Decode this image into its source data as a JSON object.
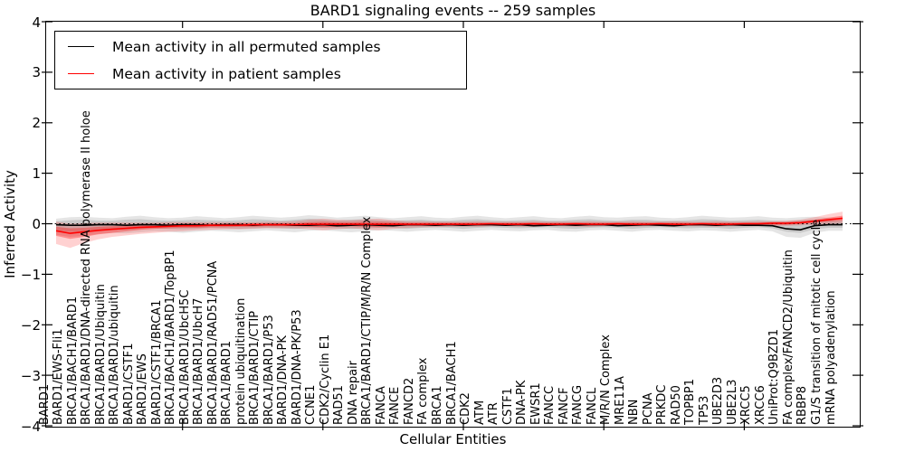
{
  "figure": {
    "background": "#ffffff"
  },
  "legend": {
    "items": [
      {
        "label": "Mean activity in all permuted samples",
        "color": "#000000"
      },
      {
        "label": "Mean activity in patient samples",
        "color": "#ff0000"
      }
    ]
  },
  "chart_data": {
    "type": "line",
    "title": "BARD1 signaling events -- 259 samples",
    "xlabel": "Cellular Entities",
    "ylabel": "Inferred Activity",
    "ylim": [
      -4,
      4
    ],
    "yticks": [
      4,
      3,
      2,
      1,
      0,
      -1,
      -2,
      -3,
      -4
    ],
    "ytick_labels": [
      "4",
      "3",
      "2",
      "1",
      "0",
      "−1",
      "−2",
      "−3",
      "−4"
    ],
    "grid": false,
    "legend_position": "upper left",
    "zero_line": {
      "y": 0,
      "style": "dotted",
      "color": "#000000"
    },
    "x_major_tick_indices": [
      9,
      19,
      29,
      39,
      49
    ],
    "categories": [
      "BARD1",
      "BARD1/EWS-Fli1",
      "BRCA1/BACH1/BARD1",
      "BRCA1/BARD1/DNA-directed RNA polymerase II holoe",
      "BRCA1/BARD1/Ubiquitin",
      "BRCA1/BARD1/ubiquitin",
      "BARD1/CSTF1",
      "BARD1/EWS",
      "BARD1/CSTF1/BRCA1",
      "BRCA1/BACH1/BARD1/TopBP1",
      "BRCA1/BARD1/UbcH5C",
      "BRCA1/BARD1/UbcH7",
      "BRCA1/BARD1/RAD51/PCNA",
      "BRCA1/BARD1",
      "protein ubiquitination",
      "BRCA1/BARD1/CTIP",
      "BRCA1/BARD1/P53",
      "BARD1/DNA-PK",
      "BARD1/DNA-PK/P53",
      "CCNE1",
      "CDK2/Cyclin E1",
      "RAD51",
      "DNA repair",
      "BRCA1/BARD1/CTIP/M/R/N Complex",
      "FANCA",
      "FANCE",
      "FANCD2",
      "FA complex",
      "BRCA1",
      "BRCA1/BACH1",
      "CDK2",
      "ATM",
      "ATR",
      "CSTF1",
      "DNA-PK",
      "EWSR1",
      "FANCC",
      "FANCF",
      "FANCG",
      "FANCL",
      "M/R/N Complex",
      "MRE11A",
      "NBN",
      "PCNA",
      "PRKDC",
      "RAD50",
      "TOPBP1",
      "TP53",
      "UBE2D3",
      "UBE2L3",
      "XRCC5",
      "XRCC6",
      "UniProt:Q9BZD1",
      "FA complex/FANCD2/Ubiquitin",
      "RBBP8",
      "G1/S transition of mitotic cell cycle",
      "mRNA polyadenylation"
    ],
    "series": [
      {
        "name": "Mean activity in all permuted samples",
        "color": "#000000",
        "line_width": 1.6,
        "values": [
          -0.02,
          -0.03,
          -0.03,
          -0.02,
          -0.02,
          -0.03,
          -0.02,
          -0.02,
          -0.03,
          -0.02,
          -0.02,
          -0.03,
          -0.02,
          -0.02,
          -0.03,
          -0.02,
          -0.02,
          -0.03,
          -0.03,
          -0.02,
          -0.04,
          -0.03,
          -0.02,
          -0.03,
          -0.04,
          -0.02,
          -0.02,
          -0.03,
          -0.02,
          -0.03,
          -0.02,
          -0.02,
          -0.03,
          -0.02,
          -0.04,
          -0.03,
          -0.02,
          -0.03,
          -0.02,
          -0.02,
          -0.04,
          -0.03,
          -0.02,
          -0.03,
          -0.04,
          -0.02,
          -0.02,
          -0.03,
          -0.02,
          -0.03,
          -0.03,
          -0.04,
          -0.1,
          -0.12,
          -0.04,
          -0.02,
          -0.02
        ],
        "bands": [
          {
            "opacity": 0.1,
            "color": "#000000",
            "upper": [
              0.1,
              0.13,
              0.14,
              0.12,
              0.11,
              0.14,
              0.16,
              0.13,
              0.11,
              0.12,
              0.15,
              0.13,
              0.11,
              0.13,
              0.16,
              0.14,
              0.12,
              0.14,
              0.17,
              0.15,
              0.12,
              0.14,
              0.16,
              0.13,
              0.11,
              0.13,
              0.15,
              0.12,
              0.11,
              0.14,
              0.16,
              0.13,
              0.11,
              0.13,
              0.15,
              0.12,
              0.11,
              0.14,
              0.16,
              0.13,
              0.12,
              0.14,
              0.15,
              0.12,
              0.11,
              0.13,
              0.16,
              0.14,
              0.12,
              0.13,
              0.15,
              0.12,
              0.11,
              0.13,
              0.14,
              0.12,
              0.1
            ],
            "lower": [
              -0.22,
              -0.26,
              -0.24,
              -0.2,
              -0.18,
              -0.19,
              -0.17,
              -0.15,
              -0.16,
              -0.18,
              -0.16,
              -0.14,
              -0.15,
              -0.17,
              -0.15,
              -0.13,
              -0.15,
              -0.17,
              -0.14,
              -0.13,
              -0.15,
              -0.17,
              -0.15,
              -0.13,
              -0.14,
              -0.16,
              -0.14,
              -0.12,
              -0.14,
              -0.16,
              -0.14,
              -0.12,
              -0.14,
              -0.15,
              -0.13,
              -0.12,
              -0.15,
              -0.16,
              -0.13,
              -0.12,
              -0.14,
              -0.16,
              -0.13,
              -0.12,
              -0.14,
              -0.15,
              -0.13,
              -0.14,
              -0.16,
              -0.14,
              -0.12,
              -0.15,
              -0.26,
              -0.28,
              -0.18,
              -0.14,
              -0.14
            ]
          },
          {
            "opacity": 0.12,
            "color": "#000000",
            "upper": [
              0.05,
              0.07,
              0.08,
              0.06,
              0.06,
              0.08,
              0.09,
              0.07,
              0.06,
              0.07,
              0.08,
              0.07,
              0.06,
              0.07,
              0.09,
              0.08,
              0.06,
              0.08,
              0.1,
              0.08,
              0.06,
              0.08,
              0.09,
              0.07,
              0.06,
              0.07,
              0.08,
              0.06,
              0.06,
              0.08,
              0.09,
              0.07,
              0.06,
              0.07,
              0.08,
              0.06,
              0.06,
              0.08,
              0.09,
              0.07,
              0.06,
              0.08,
              0.08,
              0.06,
              0.06,
              0.07,
              0.09,
              0.08,
              0.06,
              0.07,
              0.08,
              0.06,
              0.05,
              0.07,
              0.08,
              0.07,
              0.06
            ],
            "lower": [
              -0.13,
              -0.16,
              -0.15,
              -0.12,
              -0.11,
              -0.12,
              -0.1,
              -0.09,
              -0.1,
              -0.11,
              -0.1,
              -0.08,
              -0.09,
              -0.1,
              -0.09,
              -0.08,
              -0.09,
              -0.1,
              -0.08,
              -0.08,
              -0.09,
              -0.1,
              -0.09,
              -0.08,
              -0.08,
              -0.1,
              -0.08,
              -0.07,
              -0.08,
              -0.1,
              -0.08,
              -0.07,
              -0.08,
              -0.09,
              -0.08,
              -0.07,
              -0.09,
              -0.1,
              -0.08,
              -0.07,
              -0.08,
              -0.1,
              -0.08,
              -0.07,
              -0.08,
              -0.09,
              -0.08,
              -0.08,
              -0.1,
              -0.08,
              -0.07,
              -0.09,
              -0.16,
              -0.18,
              -0.11,
              -0.08,
              -0.08
            ]
          }
        ]
      },
      {
        "name": "Mean activity in patient samples",
        "color": "#ff0000",
        "line_width": 1.6,
        "values": [
          -0.14,
          -0.19,
          -0.16,
          -0.13,
          -0.11,
          -0.09,
          -0.07,
          -0.06,
          -0.05,
          -0.04,
          -0.04,
          -0.03,
          -0.03,
          -0.03,
          -0.02,
          -0.02,
          -0.02,
          -0.02,
          -0.01,
          -0.01,
          -0.01,
          -0.01,
          -0.01,
          -0.01,
          -0.01,
          -0.01,
          -0.01,
          -0.01,
          -0.01,
          -0.01,
          -0.01,
          0.0,
          -0.01,
          -0.01,
          0.0,
          -0.01,
          -0.01,
          0.0,
          -0.01,
          -0.01,
          0.0,
          -0.01,
          -0.01,
          0.0,
          -0.01,
          -0.01,
          0.0,
          -0.01,
          -0.01,
          0.0,
          0.0,
          0.01,
          0.01,
          0.02,
          0.05,
          0.08,
          0.11
        ],
        "bands": [
          {
            "opacity": 0.18,
            "color": "#ff0000",
            "upper": [
              0.04,
              0.0,
              0.01,
              0.02,
              0.02,
              0.02,
              0.02,
              0.02,
              0.03,
              0.03,
              0.03,
              0.03,
              0.03,
              0.03,
              0.03,
              0.04,
              0.04,
              0.05,
              0.08,
              0.1,
              0.08,
              0.07,
              0.09,
              0.1,
              0.07,
              0.05,
              0.05,
              0.04,
              0.04,
              0.04,
              0.05,
              0.04,
              0.04,
              0.04,
              0.05,
              0.04,
              0.04,
              0.04,
              0.05,
              0.04,
              0.04,
              0.05,
              0.04,
              0.04,
              0.05,
              0.04,
              0.04,
              0.05,
              0.04,
              0.04,
              0.05,
              0.05,
              0.06,
              0.08,
              0.13,
              0.19,
              0.24
            ],
            "lower": [
              -0.4,
              -0.48,
              -0.38,
              -0.31,
              -0.26,
              -0.23,
              -0.2,
              -0.18,
              -0.16,
              -0.15,
              -0.13,
              -0.12,
              -0.11,
              -0.11,
              -0.1,
              -0.09,
              -0.09,
              -0.09,
              -0.11,
              -0.13,
              -0.11,
              -0.09,
              -0.11,
              -0.13,
              -0.1,
              -0.08,
              -0.07,
              -0.07,
              -0.06,
              -0.06,
              -0.06,
              -0.05,
              -0.05,
              -0.06,
              -0.06,
              -0.05,
              -0.05,
              -0.06,
              -0.06,
              -0.05,
              -0.05,
              -0.06,
              -0.05,
              -0.05,
              -0.06,
              -0.05,
              -0.05,
              -0.06,
              -0.05,
              -0.05,
              -0.05,
              -0.04,
              -0.04,
              -0.03,
              -0.02,
              -0.01,
              0.01
            ]
          },
          {
            "opacity": 0.32,
            "color": "#ff0000",
            "upper": [
              -0.06,
              -0.09,
              -0.08,
              -0.06,
              -0.05,
              -0.04,
              -0.03,
              -0.02,
              -0.01,
              0.0,
              0.0,
              0.0,
              0.0,
              0.01,
              0.01,
              0.01,
              0.01,
              0.01,
              0.03,
              0.04,
              0.03,
              0.03,
              0.04,
              0.04,
              0.03,
              0.02,
              0.02,
              0.02,
              0.02,
              0.02,
              0.02,
              0.02,
              0.02,
              0.02,
              0.02,
              0.02,
              0.02,
              0.02,
              0.02,
              0.02,
              0.02,
              0.02,
              0.02,
              0.02,
              0.02,
              0.02,
              0.02,
              0.02,
              0.02,
              0.02,
              0.02,
              0.03,
              0.03,
              0.05,
              0.08,
              0.12,
              0.16
            ],
            "lower": [
              -0.24,
              -0.3,
              -0.26,
              -0.21,
              -0.18,
              -0.15,
              -0.12,
              -0.1,
              -0.09,
              -0.08,
              -0.08,
              -0.07,
              -0.07,
              -0.06,
              -0.06,
              -0.05,
              -0.05,
              -0.05,
              -0.06,
              -0.07,
              -0.06,
              -0.05,
              -0.06,
              -0.07,
              -0.05,
              -0.04,
              -0.04,
              -0.04,
              -0.03,
              -0.03,
              -0.03,
              -0.03,
              -0.03,
              -0.03,
              -0.03,
              -0.03,
              -0.03,
              -0.03,
              -0.03,
              -0.03,
              -0.03,
              -0.03,
              -0.03,
              -0.03,
              -0.03,
              -0.03,
              -0.03,
              -0.03,
              -0.03,
              -0.03,
              -0.02,
              -0.02,
              -0.02,
              0.0,
              0.02,
              0.04,
              0.06
            ]
          }
        ]
      }
    ]
  }
}
